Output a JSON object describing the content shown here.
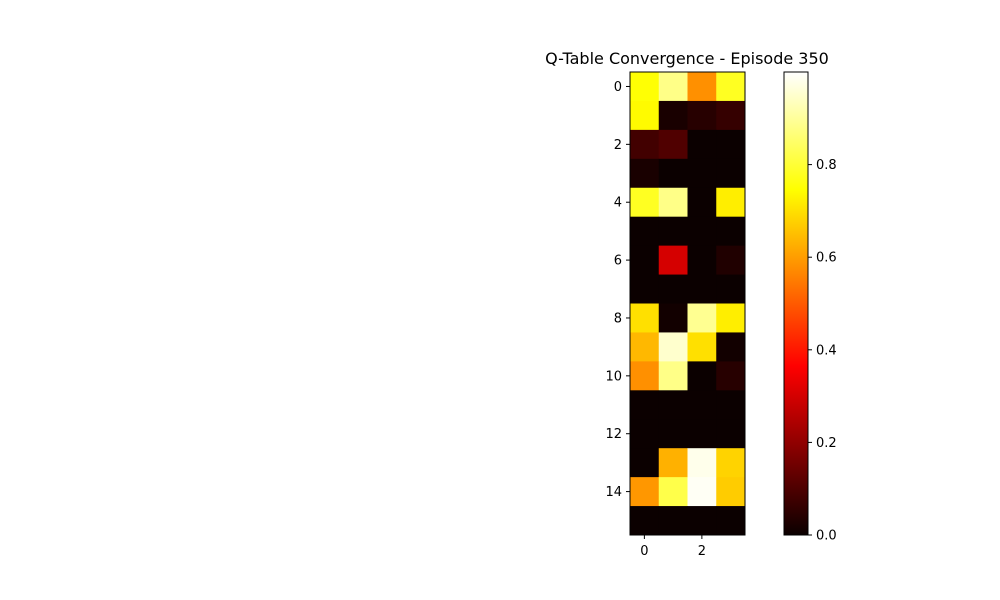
{
  "chart_data": {
    "type": "heatmap",
    "title": "Q-Table Convergence - Episode 350",
    "xlabel": "",
    "ylabel": "",
    "colormap": "hot",
    "rows": 16,
    "cols": 4,
    "x_ticks": [
      0,
      2
    ],
    "y_ticks": [
      0,
      2,
      4,
      6,
      8,
      10,
      12,
      14
    ],
    "colorbar": {
      "range": [
        0.0,
        1.0
      ],
      "ticks": [
        0.0,
        0.2,
        0.4,
        0.6,
        0.8
      ],
      "tick_labels": [
        "0.0",
        "0.2",
        "0.4",
        "0.6",
        "0.8"
      ]
    },
    "values": [
      [
        0.75,
        0.88,
        0.58,
        0.78
      ],
      [
        0.74,
        0.02,
        0.04,
        0.06
      ],
      [
        0.08,
        0.1,
        0.0,
        0.0
      ],
      [
        0.02,
        0.0,
        0.0,
        0.0
      ],
      [
        0.78,
        0.88,
        0.0,
        0.72
      ],
      [
        0.0,
        0.0,
        0.0,
        0.0
      ],
      [
        0.0,
        0.29,
        0.0,
        0.03
      ],
      [
        0.0,
        0.0,
        0.0,
        0.0
      ],
      [
        0.7,
        0.01,
        0.89,
        0.72
      ],
      [
        0.64,
        0.95,
        0.7,
        0.01
      ],
      [
        0.58,
        0.88,
        0.0,
        0.04
      ],
      [
        0.0,
        0.0,
        0.0,
        0.0
      ],
      [
        0.0,
        0.0,
        0.0,
        0.0
      ],
      [
        0.0,
        0.63,
        0.98,
        0.68
      ],
      [
        0.59,
        0.82,
        0.99,
        0.67
      ],
      [
        0.0,
        0.0,
        0.0,
        0.0
      ]
    ]
  }
}
